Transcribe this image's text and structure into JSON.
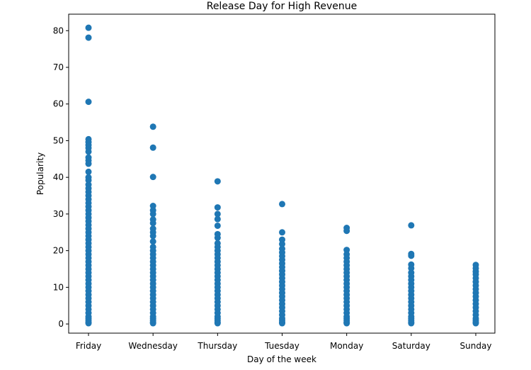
{
  "chart_data": {
    "type": "scatter",
    "title": "Release Day for High Revenue",
    "xlabel": "Day of the week",
    "ylabel": "Popularity",
    "categories": [
      "Friday",
      "Wednesday",
      "Thursday",
      "Tuesday",
      "Monday",
      "Saturday",
      "Sunday"
    ],
    "ylim": [
      -2.5,
      84.5
    ],
    "yticks": [
      0,
      10,
      20,
      30,
      40,
      50,
      60,
      70,
      80
    ],
    "grid": false,
    "marker_color": "#1f77b4",
    "series": [
      {
        "values": [
          [
            80.8,
            78.1,
            60.6,
            50.4,
            49.6,
            48.8,
            48.0,
            47.0,
            45.4,
            44.6,
            43.7,
            41.5,
            40.0,
            39.2,
            38.0,
            37.0,
            36.0,
            35.0,
            34.0,
            33.0,
            32.0,
            31.0,
            30.0,
            29.0,
            28.0,
            27.0,
            26.0,
            25.0,
            24.0,
            23.0,
            22.0,
            21.0,
            20.0,
            19.0,
            18.0,
            17.0,
            16.0,
            15.0,
            14.0,
            13.0,
            12.0,
            11.0,
            10.0,
            9.0,
            8.0,
            7.0,
            6.0,
            5.0,
            4.0,
            3.0,
            2.0,
            1.5,
            1.0,
            0.5,
            0.2
          ],
          [
            53.8,
            48.1,
            40.1,
            32.2,
            31.0,
            30.0,
            28.5,
            27.5,
            26.0,
            25.0,
            24.0,
            22.5,
            21.0,
            20.0,
            19.0,
            18.0,
            17.0,
            16.0,
            15.0,
            14.0,
            13.0,
            12.0,
            11.0,
            10.0,
            9.0,
            8.0,
            7.0,
            6.0,
            5.0,
            4.0,
            3.0,
            2.0,
            1.5,
            1.0,
            0.5,
            0.2
          ],
          [
            38.9,
            31.8,
            30.0,
            28.6,
            26.8,
            24.5,
            23.5,
            22.0,
            21.0,
            20.0,
            19.0,
            18.0,
            17.0,
            16.0,
            15.0,
            14.0,
            13.0,
            12.0,
            11.0,
            10.0,
            9.0,
            8.0,
            7.0,
            6.0,
            5.0,
            4.0,
            3.0,
            2.0,
            1.5,
            1.0,
            0.5,
            0.2
          ],
          [
            32.7,
            25.0,
            23.0,
            21.8,
            20.5,
            19.5,
            18.5,
            17.5,
            16.5,
            15.5,
            14.5,
            13.5,
            12.5,
            11.5,
            10.5,
            9.5,
            8.5,
            7.5,
            6.5,
            5.5,
            4.5,
            3.5,
            2.5,
            1.5,
            1.0,
            0.5,
            0.2
          ],
          [
            26.2,
            25.4,
            20.2,
            19.0,
            18.0,
            17.0,
            16.0,
            15.0,
            14.0,
            13.0,
            12.0,
            11.0,
            10.0,
            9.0,
            8.0,
            7.0,
            6.0,
            5.0,
            4.0,
            3.0,
            2.0,
            1.5,
            1.0,
            0.5,
            0.2
          ],
          [
            26.9,
            19.1,
            18.6,
            16.2,
            15.2,
            14.0,
            13.0,
            12.0,
            11.0,
            10.0,
            9.0,
            8.0,
            7.0,
            6.0,
            5.0,
            4.0,
            3.0,
            2.0,
            1.5,
            1.0,
            0.5,
            0.2
          ],
          [
            16.1,
            15.2,
            14.3,
            13.5,
            12.5,
            11.5,
            10.5,
            9.5,
            8.5,
            7.5,
            6.5,
            5.5,
            4.5,
            3.5,
            2.5,
            1.5,
            1.0,
            0.5,
            0.2
          ]
        ]
      }
    ]
  }
}
